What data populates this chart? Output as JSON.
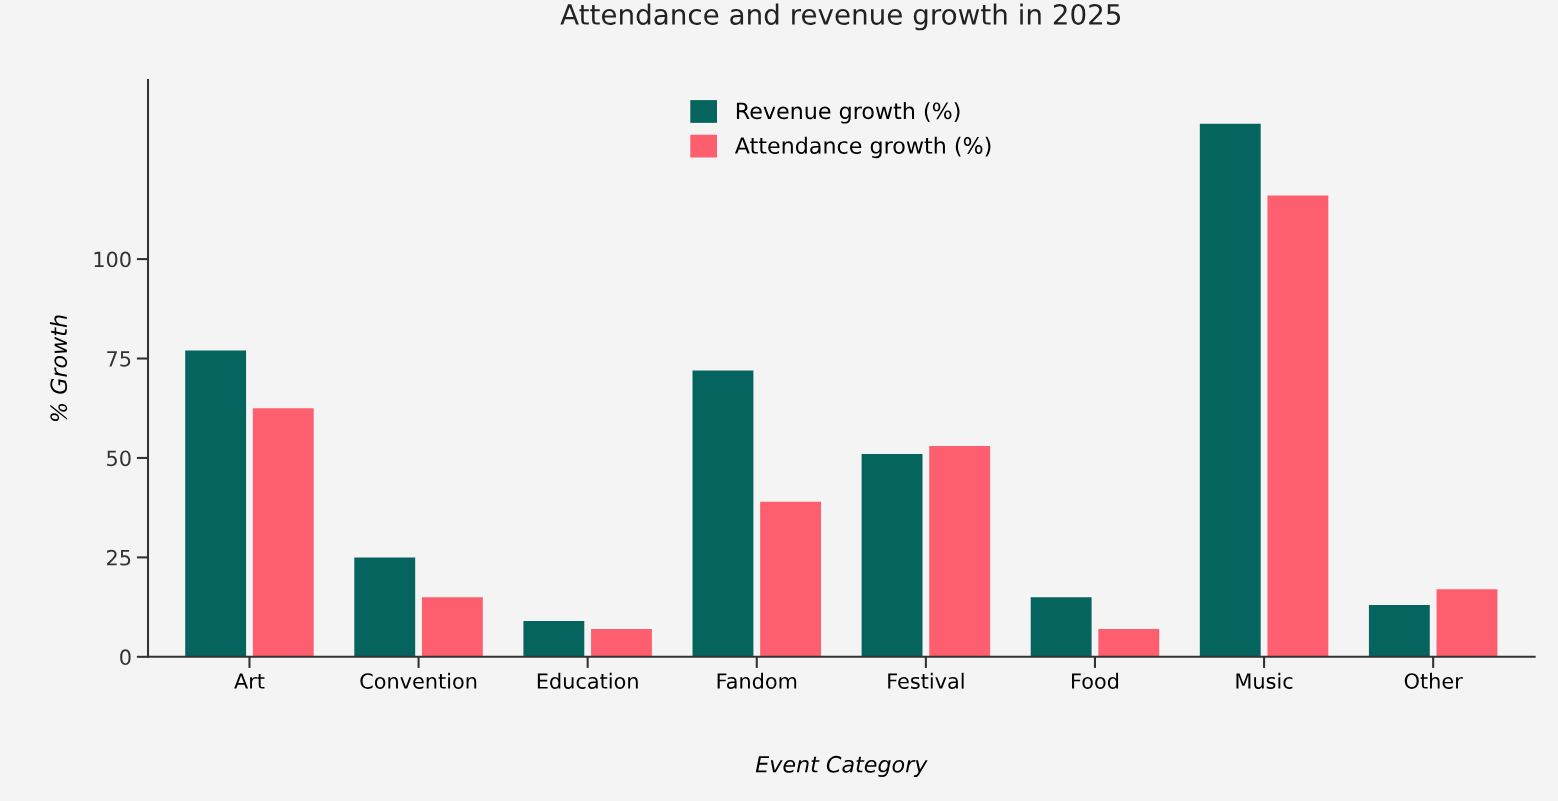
{
  "chart_data": {
    "type": "bar",
    "title": "Attendance and revenue growth in 2025",
    "xlabel": "Event Category",
    "ylabel": "% Growth",
    "categories": [
      "Art",
      "Convention",
      "Education",
      "Fandom",
      "Festival",
      "Food",
      "Music",
      "Other"
    ],
    "series": [
      {
        "name": "Revenue growth (%)",
        "color": "#06645e",
        "values": [
          77,
          25,
          9,
          72,
          51,
          15,
          134,
          13
        ]
      },
      {
        "name": "Attendance growth (%)",
        "color": "#fe5f6e",
        "values": [
          62.5,
          15,
          7,
          39,
          53,
          7,
          116,
          17
        ]
      }
    ],
    "ylim": [
      0,
      145
    ],
    "yticks": [
      0,
      25,
      50,
      75,
      100
    ],
    "grid": false,
    "legend": "top"
  }
}
